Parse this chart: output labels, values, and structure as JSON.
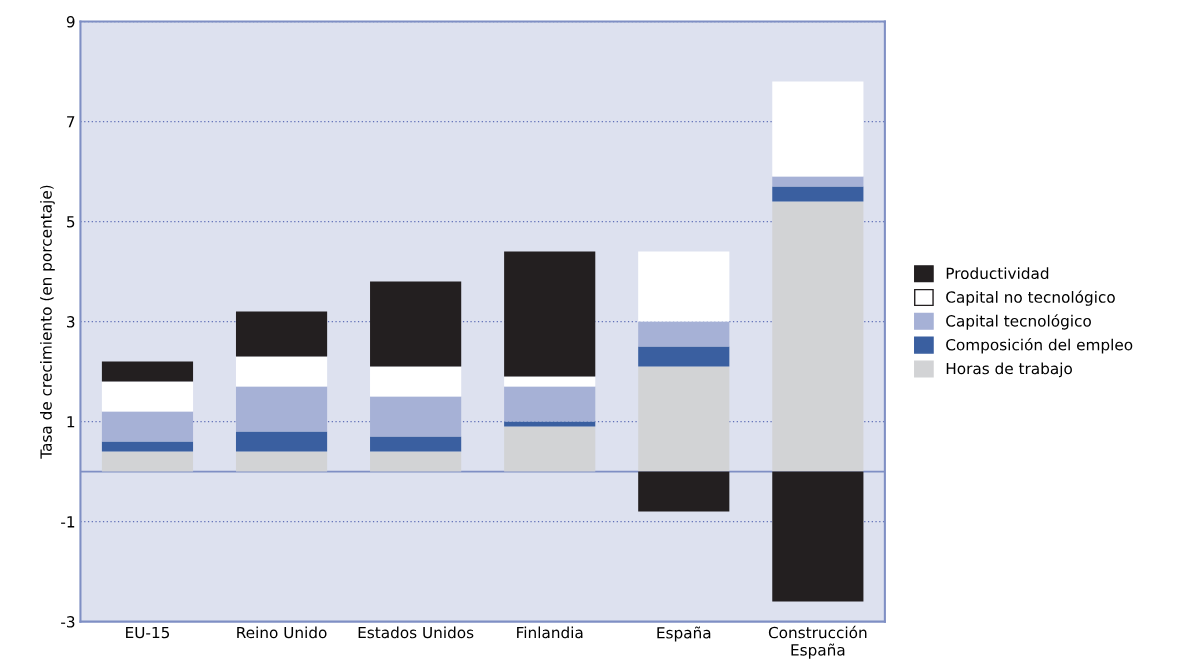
{
  "chart_data": {
    "type": "bar",
    "stacked": true,
    "ylabel": "Tasa de crecimiento (en porcentaje)",
    "categories": [
      "EU-15",
      "Reino Unido",
      "Estados Unidos",
      "Finlandia",
      "España",
      "Construcción\nEspaña"
    ],
    "series": [
      {
        "name": "Horas de trabajo",
        "color": "#d2d3d5",
        "values": [
          0.4,
          0.4,
          0.4,
          0.9,
          2.1,
          5.4
        ]
      },
      {
        "name": "Composición del empleo",
        "color": "#3a5fa0",
        "values": [
          0.2,
          0.4,
          0.3,
          0.1,
          0.4,
          0.3
        ]
      },
      {
        "name": "Capital tecnológico",
        "color": "#a6b1d6",
        "values": [
          0.6,
          0.9,
          0.8,
          0.7,
          0.5,
          0.2
        ]
      },
      {
        "name": "Capital no tecnológico",
        "color": "#ffffff",
        "values": [
          0.6,
          0.6,
          0.6,
          0.2,
          1.4,
          1.9
        ]
      },
      {
        "name": "Productividad",
        "color": "#231f20",
        "values": [
          0.4,
          0.9,
          1.7,
          2.5,
          -0.8,
          -2.6
        ]
      }
    ],
    "ylim": [
      -3,
      9
    ],
    "yticks": [
      -3,
      -1,
      1,
      3,
      5,
      7,
      9
    ],
    "grid": "y",
    "legend": "right",
    "ref_lines": [
      {
        "axis": "y",
        "value": 0,
        "color": "#7f8fc4"
      }
    ]
  }
}
